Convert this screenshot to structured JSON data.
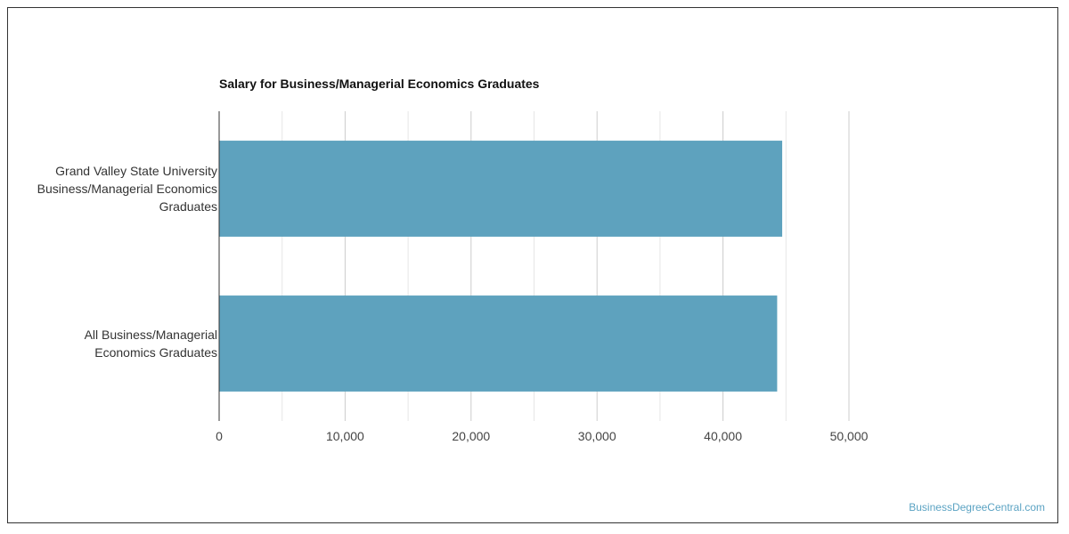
{
  "chart_data": {
    "type": "bar",
    "orientation": "horizontal",
    "title": "Salary for Business/Managerial Economics Graduates",
    "categories": [
      [
        "Grand Valley State University",
        "Business/Managerial Economics",
        "Graduates"
      ],
      [
        "All Business/Managerial",
        "Economics Graduates"
      ]
    ],
    "values": [
      44700,
      44300
    ],
    "xlim": [
      0,
      50000
    ],
    "x_ticks": [
      0,
      10000,
      20000,
      30000,
      40000,
      50000
    ],
    "x_tick_labels": [
      "0",
      "10,000",
      "20,000",
      "30,000",
      "40,000",
      "50,000"
    ],
    "xlabel": "",
    "ylabel": "",
    "grid": true,
    "bar_color": "#5ea2be"
  },
  "watermark": "BusinessDegreeCentral.com"
}
